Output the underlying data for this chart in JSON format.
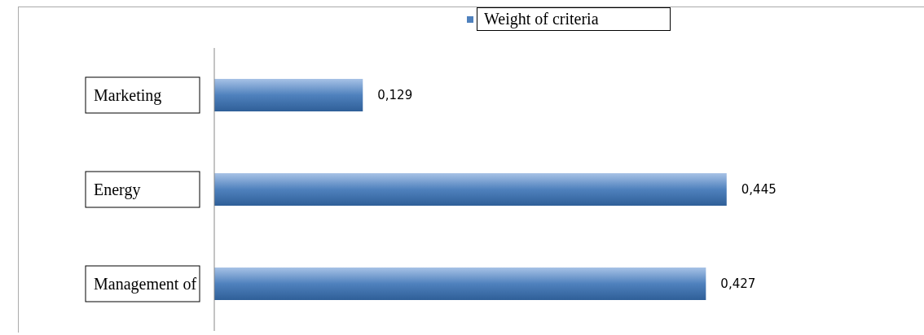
{
  "chart_data": {
    "type": "bar",
    "orientation": "horizontal",
    "categories": [
      "Marketing",
      "Energy",
      "Management of"
    ],
    "series": [
      {
        "name": "Weight of criteria",
        "color": "#4f81bd",
        "values": [
          0.129,
          0.445,
          0.427
        ],
        "value_labels": [
          "0,129",
          "0,445",
          "0,427"
        ]
      }
    ],
    "legend": "top"
  }
}
